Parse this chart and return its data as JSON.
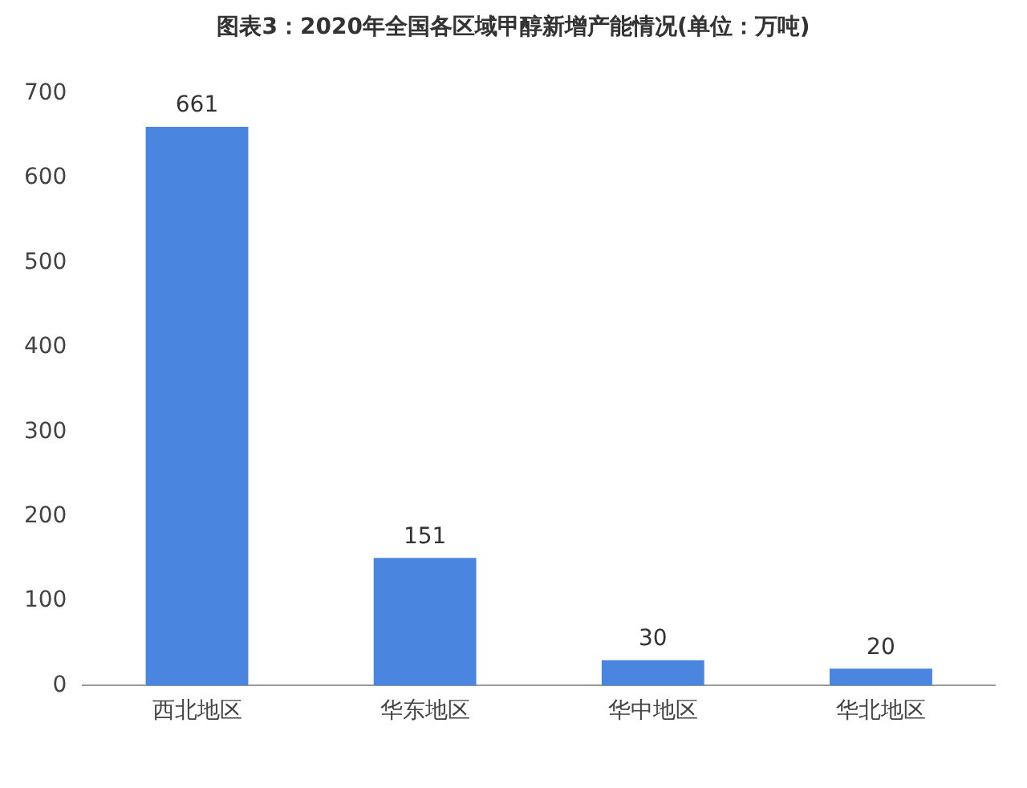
{
  "chart_data": {
    "type": "bar",
    "title": "图表3：2020年全国各区域甲醇新增产能情况(单位：万吨)",
    "categories": [
      "西北地区",
      "华东地区",
      "华中地区",
      "华北地区"
    ],
    "values": [
      661,
      151,
      30,
      20
    ],
    "color": "#4a86e0",
    "ylim": [
      0,
      700
    ],
    "yticks": [
      0,
      100,
      200,
      300,
      400,
      500,
      600,
      700
    ],
    "grid": false,
    "data_labels": true
  }
}
